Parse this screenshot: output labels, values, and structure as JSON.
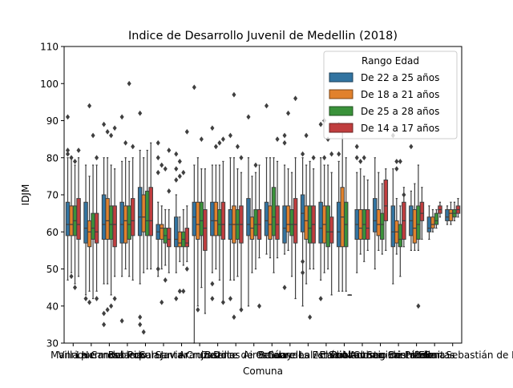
{
  "chart_data": {
    "type": "box",
    "title": "Indice de Desarrollo Juvenil de Medellin (2018)",
    "xlabel": "Comuna",
    "ylabel": "IDJM",
    "ylim": [
      30,
      110
    ],
    "yticks": [
      30,
      40,
      50,
      60,
      70,
      80,
      90,
      100,
      110
    ],
    "categories": [
      "Manrique",
      "Villa Hermosa",
      "La Candelaria",
      "Robledo",
      "Popular",
      "San Javier",
      "Santa Cruz",
      "Aranjuez",
      "Castilla",
      "Buenos Aires",
      "Doce de Octubre",
      "Belén",
      "Guayabal",
      "Laureles Estadio",
      "La América",
      "El Poblado",
      "Altavista",
      "San Antonio de Prado",
      "San Cristóbal",
      "Santa Elena",
      "Palmitas",
      "Corregimiento San Sebastián de Palmitas"
    ],
    "legend": {
      "title": "Rango Edad",
      "position": "top-right",
      "entries": [
        {
          "name": "De 22 a 25 años",
          "color": "#3274a1"
        },
        {
          "name": "De 18 a 21 años",
          "color": "#e1812c"
        },
        {
          "name": "De 25 a 28 años",
          "color": "#3a923a"
        },
        {
          "name": "De 14 a 17 años",
          "color": "#c03d3e"
        }
      ]
    },
    "series": [
      {
        "name": "De 22 a 25 años",
        "color": "#3274a1",
        "boxes": [
          {
            "lo": 47,
            "q1": 59,
            "med": 62,
            "q3": 68,
            "hi": 80,
            "out": [
              81,
              82,
              91
            ]
          },
          {
            "lo": 43,
            "q1": 57,
            "med": 61,
            "q3": 68,
            "hi": 78,
            "out": [
              42
            ]
          },
          {
            "lo": 46,
            "q1": 58,
            "med": 62,
            "q3": 70,
            "hi": 80,
            "out": [
              35,
              38,
              89
            ]
          },
          {
            "lo": 48,
            "q1": 57,
            "med": 62,
            "q3": 68,
            "hi": 79,
            "out": [
              36,
              91
            ]
          },
          {
            "lo": 46,
            "q1": 59,
            "med": 64,
            "q3": 72,
            "hi": 82,
            "out": [
              35,
              37,
              92
            ]
          },
          {
            "lo": 48,
            "q1": 58,
            "med": 60,
            "q3": 62,
            "hi": 68,
            "out": [
              50,
              76,
              80,
              84
            ]
          },
          {
            "lo": 49,
            "q1": 56,
            "med": 58,
            "q3": 64,
            "hi": 70,
            "out": [
              42,
              74,
              77,
              81
            ]
          },
          {
            "lo": 30,
            "q1": 59,
            "med": 64,
            "q3": 68,
            "hi": 78,
            "out": [
              99
            ]
          },
          {
            "lo": 49,
            "q1": 59,
            "med": 63,
            "q3": 68,
            "hi": 78,
            "out": [
              42,
              46,
              88
            ]
          },
          {
            "lo": 47,
            "q1": 58,
            "med": 62,
            "q3": 66,
            "hi": 80,
            "out": [
              42,
              86
            ]
          },
          {
            "lo": 40,
            "q1": 59,
            "med": 62,
            "q3": 69,
            "hi": 80,
            "out": [
              91
            ]
          },
          {
            "lo": 54,
            "q1": 59,
            "med": 63,
            "q3": 68,
            "hi": 80,
            "out": [
              94
            ]
          },
          {
            "lo": 54,
            "q1": 57,
            "med": 61,
            "q3": 67,
            "hi": 78,
            "out": [
              45,
              84,
              86
            ]
          },
          {
            "lo": 40,
            "q1": 60,
            "med": 65,
            "q3": 70,
            "hi": 80,
            "out": [
              49,
              52,
              81
            ]
          },
          {
            "lo": 47,
            "q1": 57,
            "med": 61,
            "q3": 68,
            "hi": 80,
            "out": [
              42,
              89
            ]
          },
          {
            "lo": 44,
            "q1": 56,
            "med": 60,
            "q3": 68,
            "hi": 79,
            "out": [
              81,
              89
            ]
          },
          {
            "lo": 49,
            "q1": 58,
            "med": 62,
            "q3": 66,
            "hi": 76,
            "out": [
              80,
              83
            ]
          },
          {
            "lo": 50,
            "q1": 60,
            "med": 63,
            "q3": 69,
            "hi": 80,
            "out": []
          },
          {
            "lo": 46,
            "q1": 56,
            "med": 60,
            "q3": 67,
            "hi": 77,
            "out": [
              86
            ]
          },
          {
            "lo": 55,
            "q1": 59,
            "med": 63,
            "q3": 67,
            "hi": 71,
            "out": [
              83
            ]
          },
          {
            "lo": 58,
            "q1": 60,
            "med": 61,
            "q3": 64,
            "hi": 67,
            "out": []
          },
          {
            "lo": 62,
            "q1": 63,
            "med": 64,
            "q3": 66,
            "hi": 67,
            "out": []
          }
        ]
      },
      {
        "name": "De 18 a 21 años",
        "color": "#e1812c",
        "boxes": [
          {
            "lo": 49,
            "q1": 59,
            "med": 62,
            "q3": 67,
            "hi": 80,
            "out": [
              48,
              80
            ]
          },
          {
            "lo": 44,
            "q1": 56,
            "med": 60,
            "q3": 63,
            "hi": 75,
            "out": [
              41,
              94
            ]
          },
          {
            "lo": 46,
            "q1": 58,
            "med": 63,
            "q3": 69,
            "hi": 80,
            "out": [
              39,
              87
            ]
          },
          {
            "lo": 50,
            "q1": 57,
            "med": 63,
            "q3": 67,
            "hi": 80,
            "out": [
              84
            ]
          },
          {
            "lo": 49,
            "q1": 60,
            "med": 64,
            "q3": 70,
            "hi": 80,
            "out": [
              33
            ]
          },
          {
            "lo": 50,
            "q1": 58,
            "med": 61,
            "q3": 62,
            "hi": 67,
            "out": [
              41,
              78
            ]
          },
          {
            "lo": 52,
            "q1": 56,
            "med": 57,
            "q3": 60,
            "hi": 64,
            "out": [
              44,
              75,
              79
            ]
          },
          {
            "lo": 40,
            "q1": 58,
            "med": 62,
            "q3": 68,
            "hi": 80,
            "out": [
              39
            ]
          },
          {
            "lo": 50,
            "q1": 59,
            "med": 63,
            "q3": 68,
            "hi": 78,
            "out": [
              83
            ]
          },
          {
            "lo": 47,
            "q1": 57,
            "med": 62,
            "q3": 67,
            "hi": 80,
            "out": [
              37,
              97
            ]
          },
          {
            "lo": 49,
            "q1": 58,
            "med": 61,
            "q3": 64,
            "hi": 75,
            "out": []
          },
          {
            "lo": 53,
            "q1": 58,
            "med": 62,
            "q3": 67,
            "hi": 80,
            "out": []
          },
          {
            "lo": 55,
            "q1": 60,
            "med": 62,
            "q3": 67,
            "hi": 77,
            "out": [
              92
            ]
          },
          {
            "lo": 46,
            "q1": 58,
            "med": 63,
            "q3": 67,
            "hi": 78,
            "out": [
              86
            ]
          },
          {
            "lo": 49,
            "q1": 57,
            "med": 62,
            "q3": 67,
            "hi": 78,
            "out": [
              80,
              90
            ]
          },
          {
            "lo": 44,
            "q1": 56,
            "med": 64,
            "q3": 72,
            "hi": 89,
            "out": []
          },
          {
            "lo": 54,
            "q1": 58,
            "med": 61,
            "q3": 66,
            "hi": 77,
            "out": [
              79
            ]
          },
          {
            "lo": 55,
            "q1": 59,
            "med": 62,
            "q3": 66,
            "hi": 76,
            "out": []
          },
          {
            "lo": 54,
            "q1": 57,
            "med": 60,
            "q3": 63,
            "hi": 69,
            "out": [
              77,
              79
            ]
          },
          {
            "lo": 55,
            "q1": 57,
            "med": 61,
            "q3": 66,
            "hi": 73,
            "out": []
          },
          {
            "lo": 60,
            "q1": 61,
            "med": 62,
            "q3": 64,
            "hi": 66,
            "out": []
          },
          {
            "lo": 62,
            "q1": 63,
            "med": 65,
            "q3": 66,
            "hi": 68,
            "out": []
          }
        ]
      },
      {
        "name": "De 25 a 28 años",
        "color": "#3a923a",
        "boxes": [
          {
            "lo": 46,
            "q1": 59,
            "med": 63,
            "q3": 67,
            "hi": 78,
            "out": [
              45,
              79
            ]
          },
          {
            "lo": 42,
            "q1": 58,
            "med": 61,
            "q3": 65,
            "hi": 78,
            "out": [
              86
            ]
          },
          {
            "lo": 43,
            "q1": 58,
            "med": 62,
            "q3": 67,
            "hi": 78,
            "out": [
              40,
              86
            ]
          },
          {
            "lo": 48,
            "q1": 58,
            "med": 62,
            "q3": 67,
            "hi": 79,
            "out": [
              100
            ]
          },
          {
            "lo": 50,
            "q1": 59,
            "med": 63,
            "q3": 71,
            "hi": 82,
            "out": []
          },
          {
            "lo": 51,
            "q1": 57,
            "med": 59,
            "q3": 61,
            "hi": 66,
            "out": [
              47,
              77
            ]
          },
          {
            "lo": 51,
            "q1": 56,
            "med": 58,
            "q3": 60,
            "hi": 66,
            "out": [
              44,
              76
            ]
          },
          {
            "lo": 45,
            "q1": 59,
            "med": 63,
            "q3": 68,
            "hi": 77,
            "out": [
              85
            ]
          },
          {
            "lo": 47,
            "q1": 59,
            "med": 62,
            "q3": 66,
            "hi": 78,
            "out": [
              84
            ]
          },
          {
            "lo": 48,
            "q1": 58,
            "med": 62,
            "q3": 66,
            "hi": 77,
            "out": [
              83
            ]
          },
          {
            "lo": 50,
            "q1": 59,
            "med": 62,
            "q3": 66,
            "hi": 76,
            "out": [
              78
            ]
          },
          {
            "lo": 49,
            "q1": 59,
            "med": 64,
            "q3": 72,
            "hi": 80,
            "out": []
          },
          {
            "lo": 48,
            "q1": 59,
            "med": 62,
            "q3": 66,
            "hi": 76,
            "out": []
          },
          {
            "lo": 50,
            "q1": 57,
            "med": 61,
            "q3": 67,
            "hi": 79,
            "out": [
              37
            ]
          },
          {
            "lo": 50,
            "q1": 56,
            "med": 60,
            "q3": 67,
            "hi": 78,
            "out": [
              85
            ]
          },
          {
            "lo": 44,
            "q1": 56,
            "med": 62,
            "q3": 68,
            "hi": 80,
            "out": []
          },
          {
            "lo": 52,
            "q1": 58,
            "med": 62,
            "q3": 66,
            "hi": 75,
            "out": [
              80
            ]
          },
          {
            "lo": 54,
            "q1": 58,
            "med": 62,
            "q3": 65,
            "hi": 73,
            "out": []
          },
          {
            "lo": 48,
            "q1": 56,
            "med": 58,
            "q3": 62,
            "hi": 67,
            "out": [
              79
            ]
          },
          {
            "lo": 55,
            "q1": 58,
            "med": 62,
            "q3": 67,
            "hi": 78,
            "out": [
              40
            ]
          },
          {
            "lo": 61,
            "q1": 62,
            "med": 63,
            "q3": 65,
            "hi": 66,
            "out": []
          },
          {
            "lo": 63,
            "q1": 64,
            "med": 65,
            "q3": 66,
            "hi": 68,
            "out": []
          }
        ]
      },
      {
        "name": "De 14 a 17 años",
        "color": "#c03d3e",
        "boxes": [
          {
            "lo": 48,
            "q1": 58,
            "med": 62,
            "q3": 69,
            "hi": 80,
            "out": [
              82
            ]
          },
          {
            "lo": 44,
            "q1": 57,
            "med": 60,
            "q3": 65,
            "hi": 78,
            "out": [
              42,
              80
            ]
          },
          {
            "lo": 48,
            "q1": 56,
            "med": 62,
            "q3": 67,
            "hi": 77,
            "out": [
              42,
              88
            ]
          },
          {
            "lo": 47,
            "q1": 59,
            "med": 63,
            "q3": 69,
            "hi": 80,
            "out": [
              83
            ]
          },
          {
            "lo": 50,
            "q1": 59,
            "med": 63,
            "q3": 72,
            "hi": 84,
            "out": []
          },
          {
            "lo": 49,
            "q1": 56,
            "med": 58,
            "q3": 61,
            "hi": 66,
            "out": [
              71,
              82
            ]
          },
          {
            "lo": 52,
            "q1": 56,
            "med": 57,
            "q3": 61,
            "hi": 67,
            "out": [
              50,
              87
            ]
          },
          {
            "lo": 38,
            "q1": 55,
            "med": 61,
            "q3": 66,
            "hi": 77,
            "out": []
          },
          {
            "lo": 41,
            "q1": 58,
            "med": 62,
            "q3": 68,
            "hi": 79,
            "out": [
              41,
              85
            ]
          },
          {
            "lo": 39,
            "q1": 57,
            "med": 62,
            "q3": 67,
            "hi": 76,
            "out": [
              39,
              80
            ]
          },
          {
            "lo": 53,
            "q1": 58,
            "med": 62,
            "q3": 66,
            "hi": 78,
            "out": [
              40
            ]
          },
          {
            "lo": 53,
            "q1": 58,
            "med": 62,
            "q3": 67,
            "hi": 79,
            "out": [
              85
            ]
          },
          {
            "lo": 42,
            "q1": 57,
            "med": 62,
            "q3": 69,
            "hi": 80,
            "out": [
              96
            ]
          },
          {
            "lo": 50,
            "q1": 57,
            "med": 62,
            "q3": 67,
            "hi": 77,
            "out": [
              80
            ]
          },
          {
            "lo": 43,
            "q1": 57,
            "med": 60,
            "q3": 64,
            "hi": 76,
            "out": [
              81
            ]
          },
          {
            "lo": 43,
            "q1": 43,
            "med": 43,
            "q3": 43,
            "hi": 43,
            "out": []
          },
          {
            "lo": 55,
            "q1": 58,
            "med": 61,
            "q3": 66,
            "hi": 74,
            "out": []
          },
          {
            "lo": 55,
            "q1": 63,
            "med": 67,
            "q3": 74,
            "hi": 77,
            "out": []
          },
          {
            "lo": 56,
            "q1": 58,
            "med": 63,
            "q3": 68,
            "hi": 72,
            "out": [
              70
            ]
          },
          {
            "lo": 58,
            "q1": 63,
            "med": 65,
            "q3": 68,
            "hi": 72,
            "out": []
          },
          {
            "lo": 64,
            "q1": 65,
            "med": 66,
            "q3": 67,
            "hi": 68,
            "out": []
          },
          {
            "lo": 64,
            "q1": 65,
            "med": 66,
            "q3": 67,
            "hi": 69,
            "out": []
          }
        ]
      }
    ]
  }
}
